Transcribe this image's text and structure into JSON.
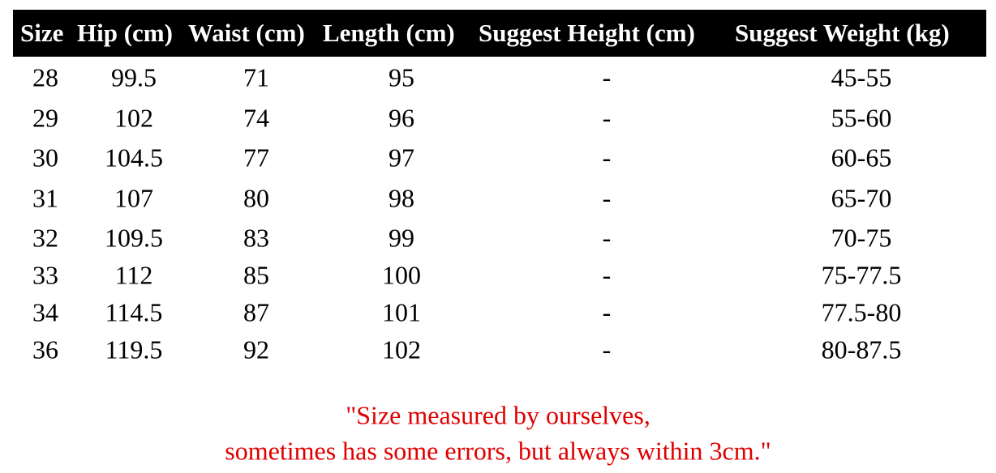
{
  "table": {
    "header": [
      "Size",
      "Hip (cm)",
      "Waist (cm)",
      "Length (cm)",
      "Suggest Height (cm)",
      "Suggest Weight (kg)"
    ],
    "rows": [
      [
        "28",
        "99.5",
        "71",
        "95",
        "-",
        "45-55"
      ],
      [
        "29",
        "102",
        "74",
        "96",
        "-",
        "55-60"
      ],
      [
        "30",
        "104.5",
        "77",
        "97",
        "-",
        "60-65"
      ],
      [
        "31",
        "107",
        "80",
        "98",
        "-",
        "65-70"
      ],
      [
        "32",
        "109.5",
        "83",
        "99",
        "-",
        "70-75"
      ],
      [
        "33",
        "112",
        "85",
        "100",
        "-",
        "75-77.5"
      ],
      [
        "34",
        "114.5",
        "87",
        "101",
        "-",
        "77.5-80"
      ],
      [
        "36",
        "119.5",
        "92",
        "102",
        "-",
        "80-87.5"
      ]
    ]
  },
  "note": [
    "\"Size measured by ourselves,",
    "sometimes has some errors, but always within 3cm.\""
  ]
}
